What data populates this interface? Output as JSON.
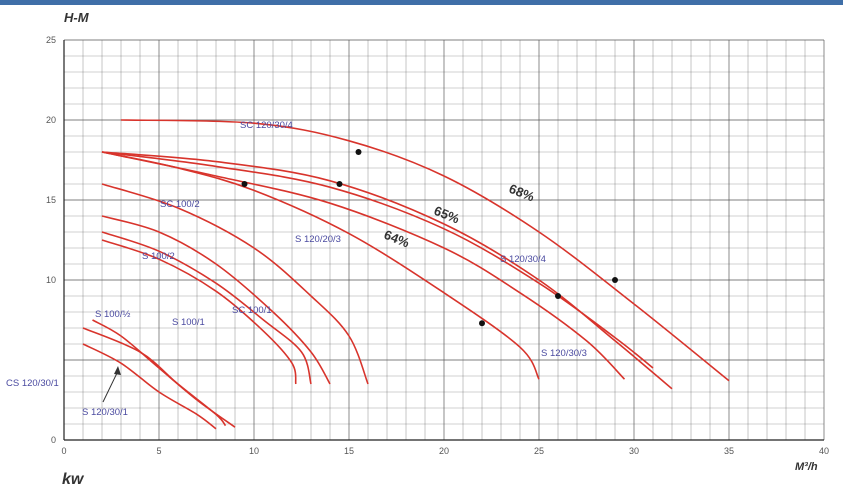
{
  "chart_data": {
    "type": "line",
    "title": "",
    "ylabel": "H-M",
    "xlabel": "M³/h",
    "bottom_label": "kw",
    "xlim": [
      0,
      40
    ],
    "ylim": [
      0,
      25
    ],
    "x_ticks": [
      0,
      5,
      10,
      15,
      20,
      25,
      30,
      35,
      40
    ],
    "x_tick_labels": [
      "0",
      "5",
      "10",
      "15",
      "20",
      "25",
      "30",
      "35",
      "40"
    ],
    "y_ticks": [
      0,
      5,
      10,
      15,
      20,
      25
    ],
    "y_tick_labels": [
      "0",
      "",
      "10",
      "15",
      "20",
      "25"
    ],
    "grid": true,
    "line_color": "#d8342c",
    "grid_color": "#555555",
    "label_color": "#4a4aa0",
    "series": [
      {
        "label": "SC 120/30/4",
        "points": [
          [
            3,
            20
          ],
          [
            10,
            19.8
          ],
          [
            15,
            18.7
          ],
          [
            20,
            16.5
          ],
          [
            25,
            13
          ],
          [
            30,
            8.5
          ],
          [
            35,
            3.7
          ]
        ]
      },
      {
        "label": "",
        "points": [
          [
            2,
            18
          ],
          [
            8,
            17.4
          ],
          [
            14,
            16.2
          ],
          [
            20,
            13.5
          ],
          [
            25,
            10
          ],
          [
            29,
            6.2
          ],
          [
            32,
            3.2
          ]
        ]
      },
      {
        "label": "S 120/30/4",
        "points": [
          [
            2,
            18
          ],
          [
            8,
            17.1
          ],
          [
            14,
            15.8
          ],
          [
            20,
            13.2
          ],
          [
            25,
            9.8
          ],
          [
            29,
            6.4
          ],
          [
            31,
            4.5
          ]
        ]
      },
      {
        "label": "S 120/30/3",
        "points": [
          [
            2,
            18
          ],
          [
            8,
            16.5
          ],
          [
            14,
            14.8
          ],
          [
            20,
            12
          ],
          [
            24,
            9.2
          ],
          [
            27.5,
            6.2
          ],
          [
            29.5,
            3.8
          ]
        ]
      },
      {
        "label": "S 120/20/3",
        "points": [
          [
            2,
            18
          ],
          [
            6,
            17
          ],
          [
            10,
            15.6
          ],
          [
            15,
            12.9
          ],
          [
            20,
            9.2
          ],
          [
            24,
            5.8
          ],
          [
            25,
            3.8
          ]
        ]
      },
      {
        "label": "SC 100/2",
        "points": [
          [
            2,
            16
          ],
          [
            6,
            14.5
          ],
          [
            10,
            12
          ],
          [
            13,
            9
          ],
          [
            15,
            6.5
          ],
          [
            16,
            3.5
          ]
        ]
      },
      {
        "label": "S 100/2",
        "points": [
          [
            2,
            14
          ],
          [
            5,
            13
          ],
          [
            8,
            11
          ],
          [
            11,
            8
          ],
          [
            13,
            5.5
          ],
          [
            14,
            3.5
          ]
        ]
      },
      {
        "label": "SC 100/1",
        "points": [
          [
            2,
            13
          ],
          [
            5,
            11.8
          ],
          [
            8,
            9.8
          ],
          [
            10.5,
            7.5
          ],
          [
            12.5,
            5.5
          ],
          [
            13,
            3.5
          ]
        ]
      },
      {
        "label": "S 100/1",
        "points": [
          [
            2,
            12.5
          ],
          [
            5,
            11.3
          ],
          [
            8,
            9.3
          ],
          [
            10.5,
            6.8
          ],
          [
            12,
            4.8
          ],
          [
            12.2,
            3.5
          ]
        ]
      },
      {
        "label": "S 100/½",
        "points": [
          [
            1.5,
            7.5
          ],
          [
            3,
            6.5
          ],
          [
            5,
            4.5
          ],
          [
            7,
            2.5
          ],
          [
            9,
            0.8
          ]
        ]
      },
      {
        "label": "S 120/30/1",
        "points": [
          [
            1,
            6
          ],
          [
            3,
            4.8
          ],
          [
            5,
            3
          ],
          [
            7,
            1.6
          ],
          [
            8,
            0.7
          ]
        ]
      },
      {
        "label": "CS 120/30/1",
        "points": [
          [
            1,
            7
          ],
          [
            4,
            5.5
          ],
          [
            6,
            3.5
          ],
          [
            8,
            1.6
          ],
          [
            8.5,
            0.9
          ]
        ]
      }
    ],
    "efficiency_points": [
      [
        9.5,
        16
      ],
      [
        14.5,
        16
      ],
      [
        15.5,
        18
      ],
      [
        22,
        7.3
      ],
      [
        26,
        9
      ],
      [
        29,
        10
      ]
    ],
    "efficiency_labels": [
      "68%",
      "65%",
      "64%"
    ]
  }
}
